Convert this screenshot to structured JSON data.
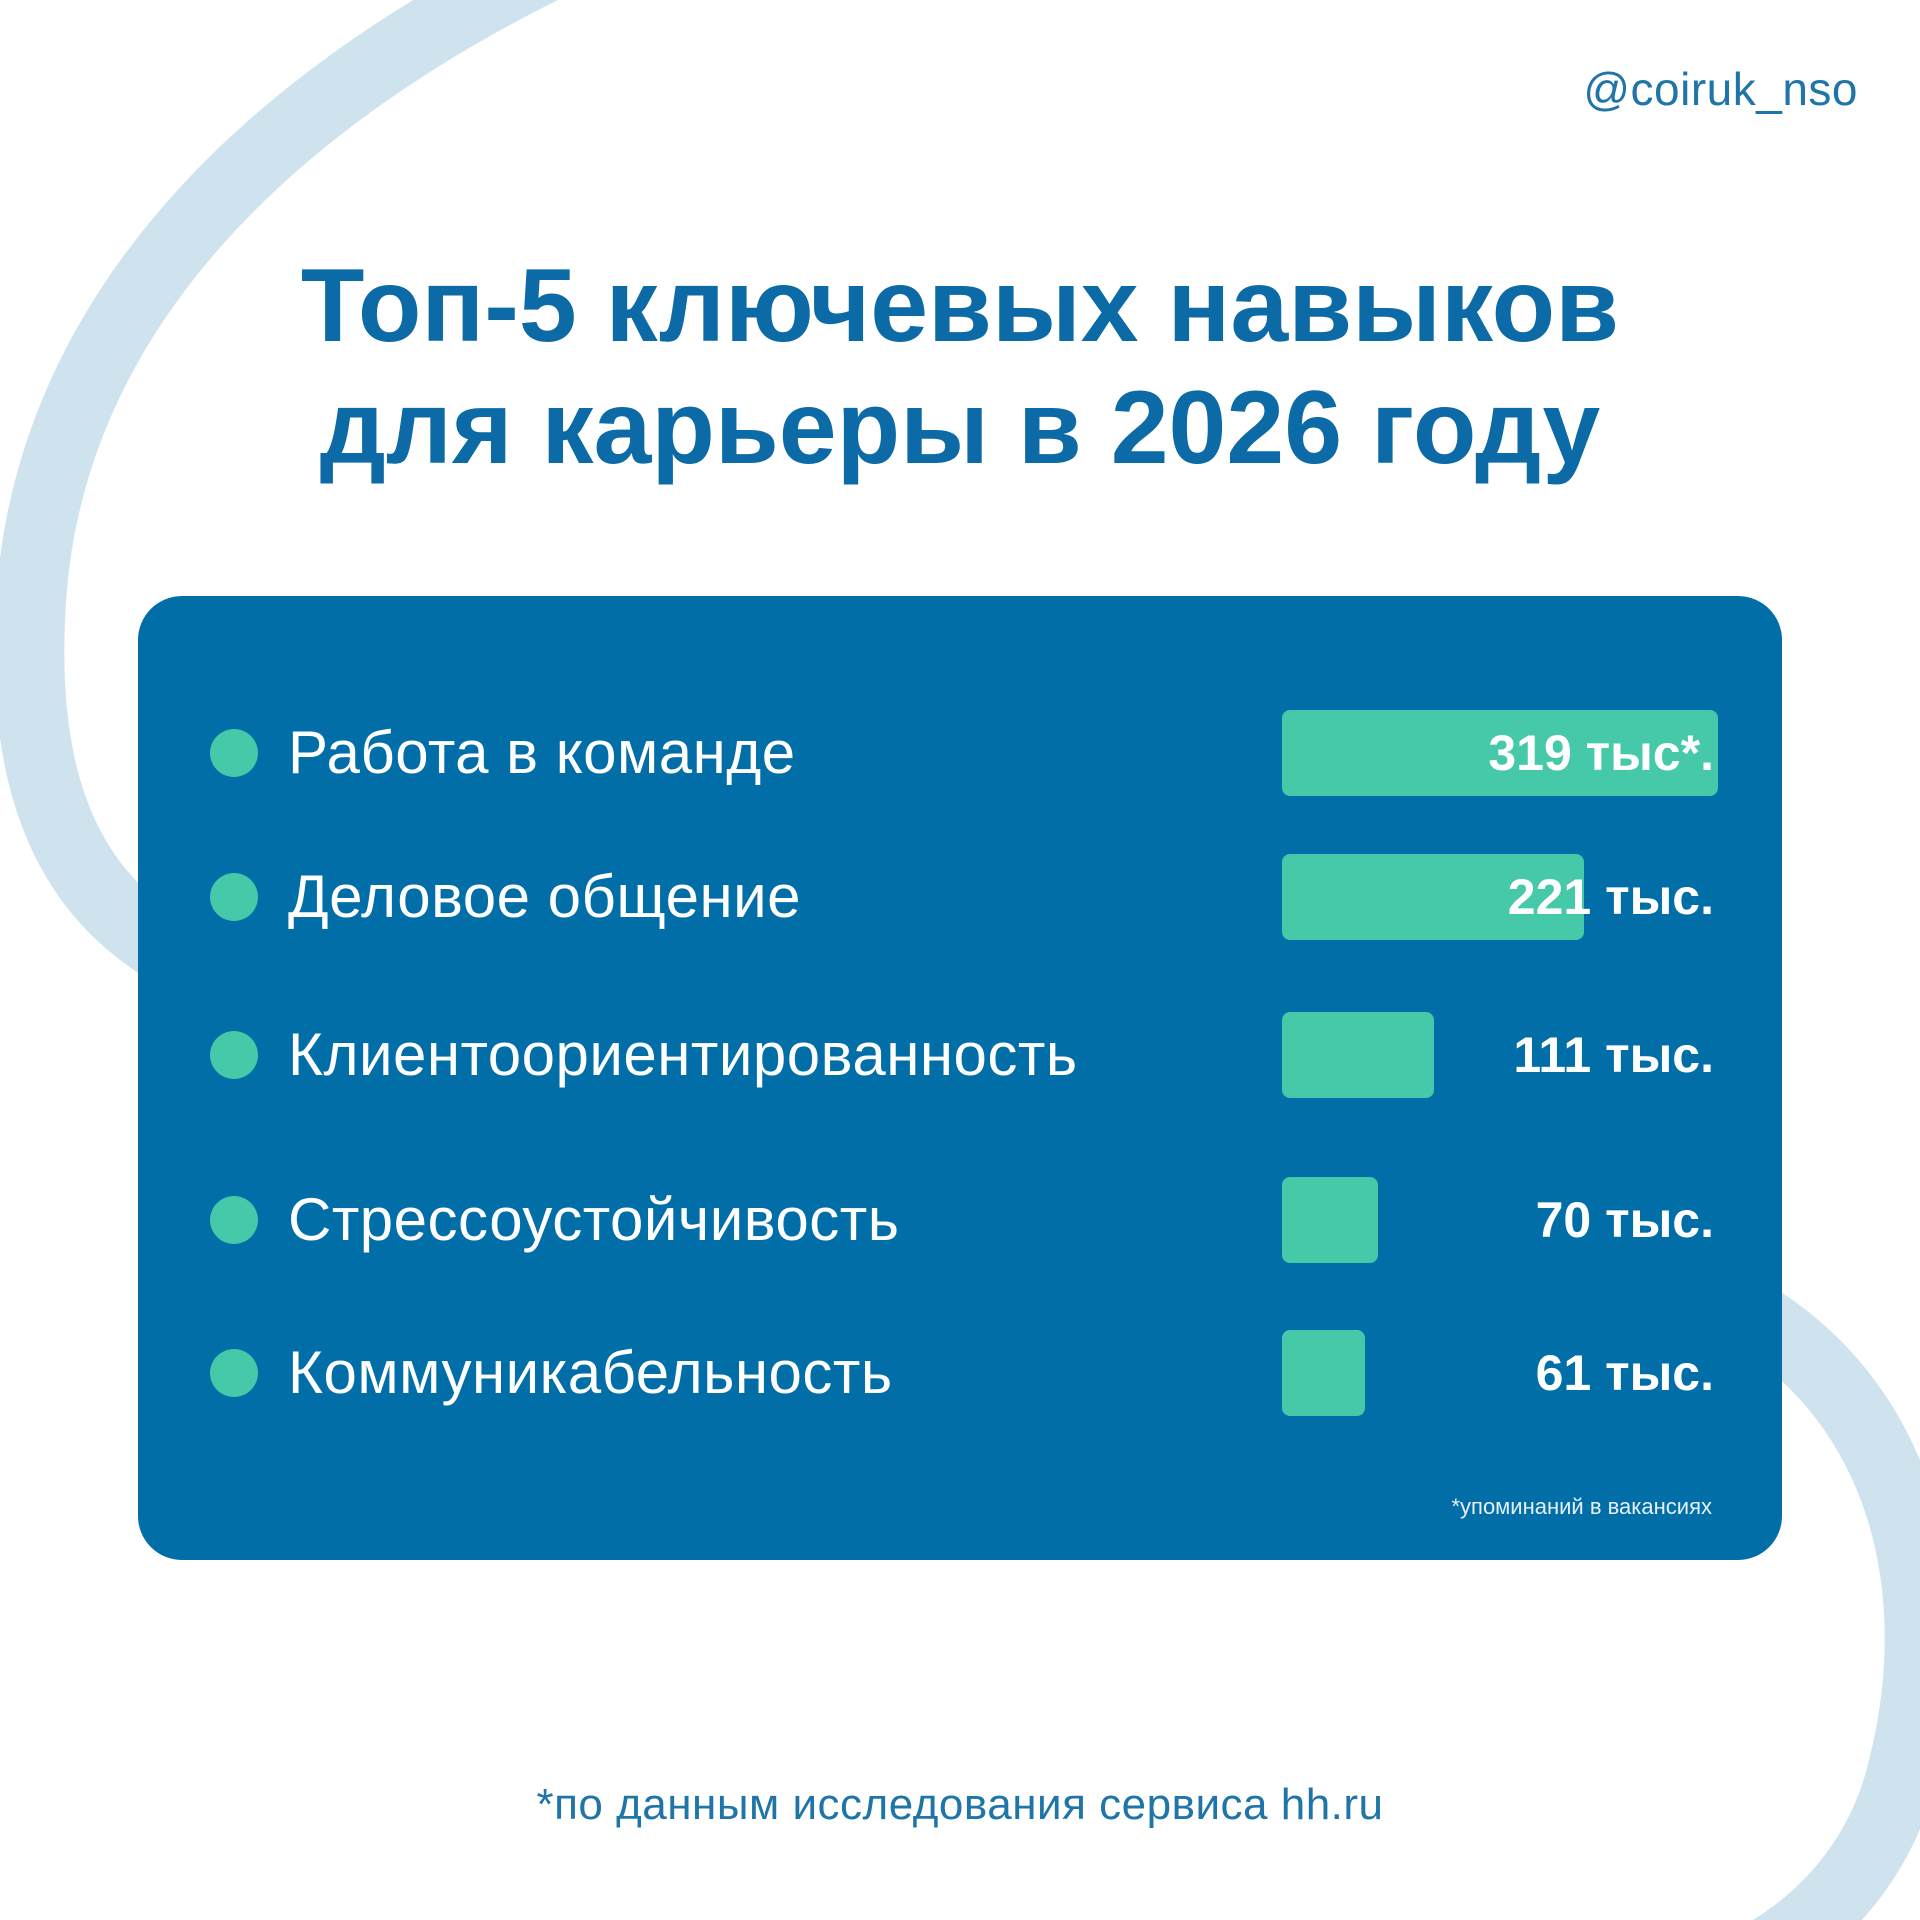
{
  "header": {
    "handle": "@coiruk_nso"
  },
  "title": {
    "line1": "Топ-5 ключевых навыков",
    "line2": "для карьеры в 2026 году"
  },
  "chart_data": {
    "type": "bar",
    "orientation": "horizontal",
    "unit": "тыс.",
    "categories": [
      "Работа в команде",
      "Деловое общение",
      "Клиентоориентированность",
      "Стрессоустойчивость",
      "Коммуникабельность"
    ],
    "values": [
      319,
      221,
      111,
      70,
      61
    ],
    "value_labels": [
      "319 тыс*.",
      "221 тыс.",
      "111 тыс.",
      "70 тыс.",
      "61 тыс."
    ],
    "footnote": "*упоминаний в вакансиях",
    "bar_color": "#45c9a8",
    "card_color": "#016ea8"
  },
  "footer": {
    "source": "*по данным исследования сервиса hh.ru"
  },
  "colors": {
    "title": "#0c6aa6",
    "swoosh": "#cfe3ee",
    "accent": "#45c9a8"
  }
}
